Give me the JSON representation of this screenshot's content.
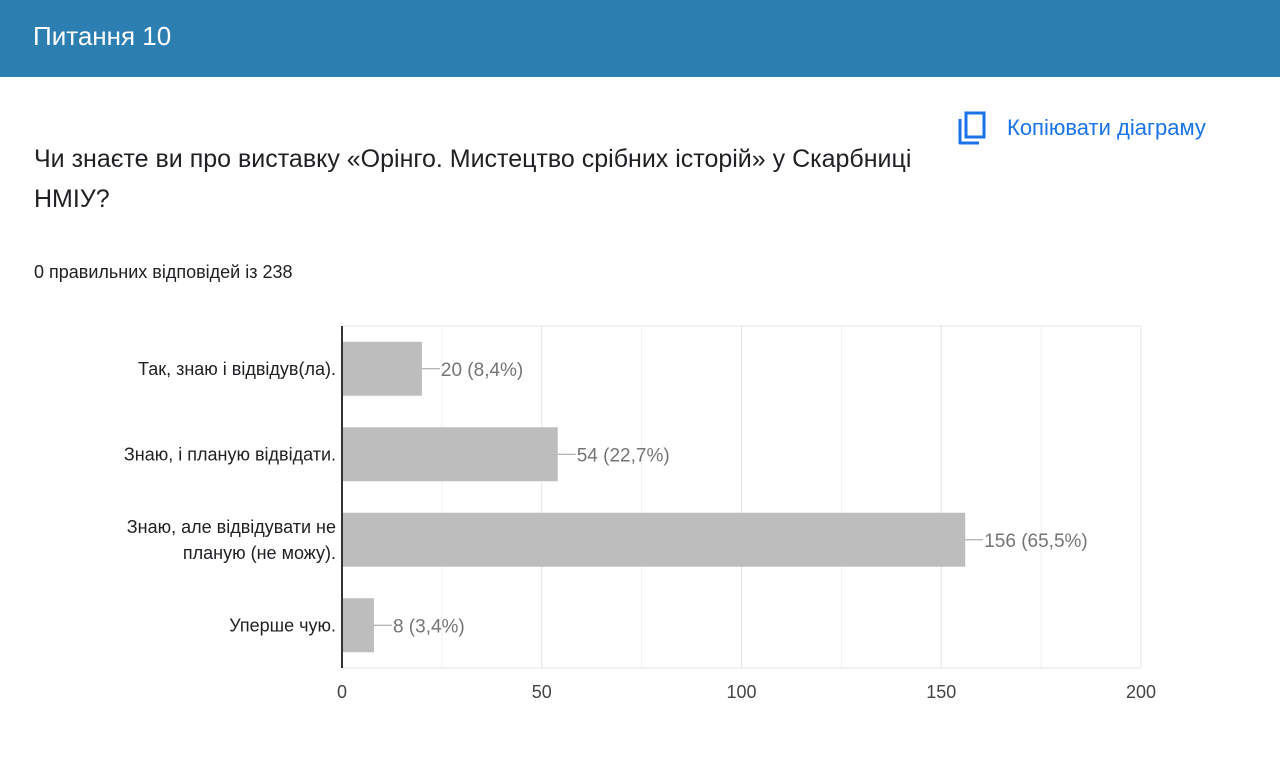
{
  "header": {
    "title": "Питання 10"
  },
  "toolbar": {
    "copy_label": "Копіювати діаграму",
    "copy_icon": "copy-icon"
  },
  "question": {
    "text": "Чи знаєте ви про виставку «Орінго. Мистецтво срібних історій» у Скарбниці НМІУ?"
  },
  "summary": {
    "text": "0 правильних відповідей із 238"
  },
  "colors": {
    "header": "#2d7fb2",
    "accent": "#1a73e8",
    "bar": "#bdbdbd",
    "data_label": "#757575"
  },
  "chart_data": {
    "type": "bar",
    "orientation": "horizontal",
    "categories": [
      [
        "Так, знаю і відвідув(ла)."
      ],
      [
        "Знаю, і планую відвідати."
      ],
      [
        "Знаю, але відвідувати не",
        "планую (не можу)."
      ],
      [
        "Уперше чую."
      ]
    ],
    "values": [
      20,
      54,
      156,
      8
    ],
    "data_labels": [
      "20 (8,4%)",
      "54 (22,7%)",
      "156 (65,5%)",
      "8 (3,4%)"
    ],
    "xlim": [
      0,
      200
    ],
    "xticks": [
      0,
      50,
      100,
      150,
      200
    ],
    "xtick_labels": [
      "0",
      "50",
      "100",
      "150",
      "200"
    ],
    "grid": true,
    "title": "",
    "xlabel": "",
    "ylabel": ""
  }
}
